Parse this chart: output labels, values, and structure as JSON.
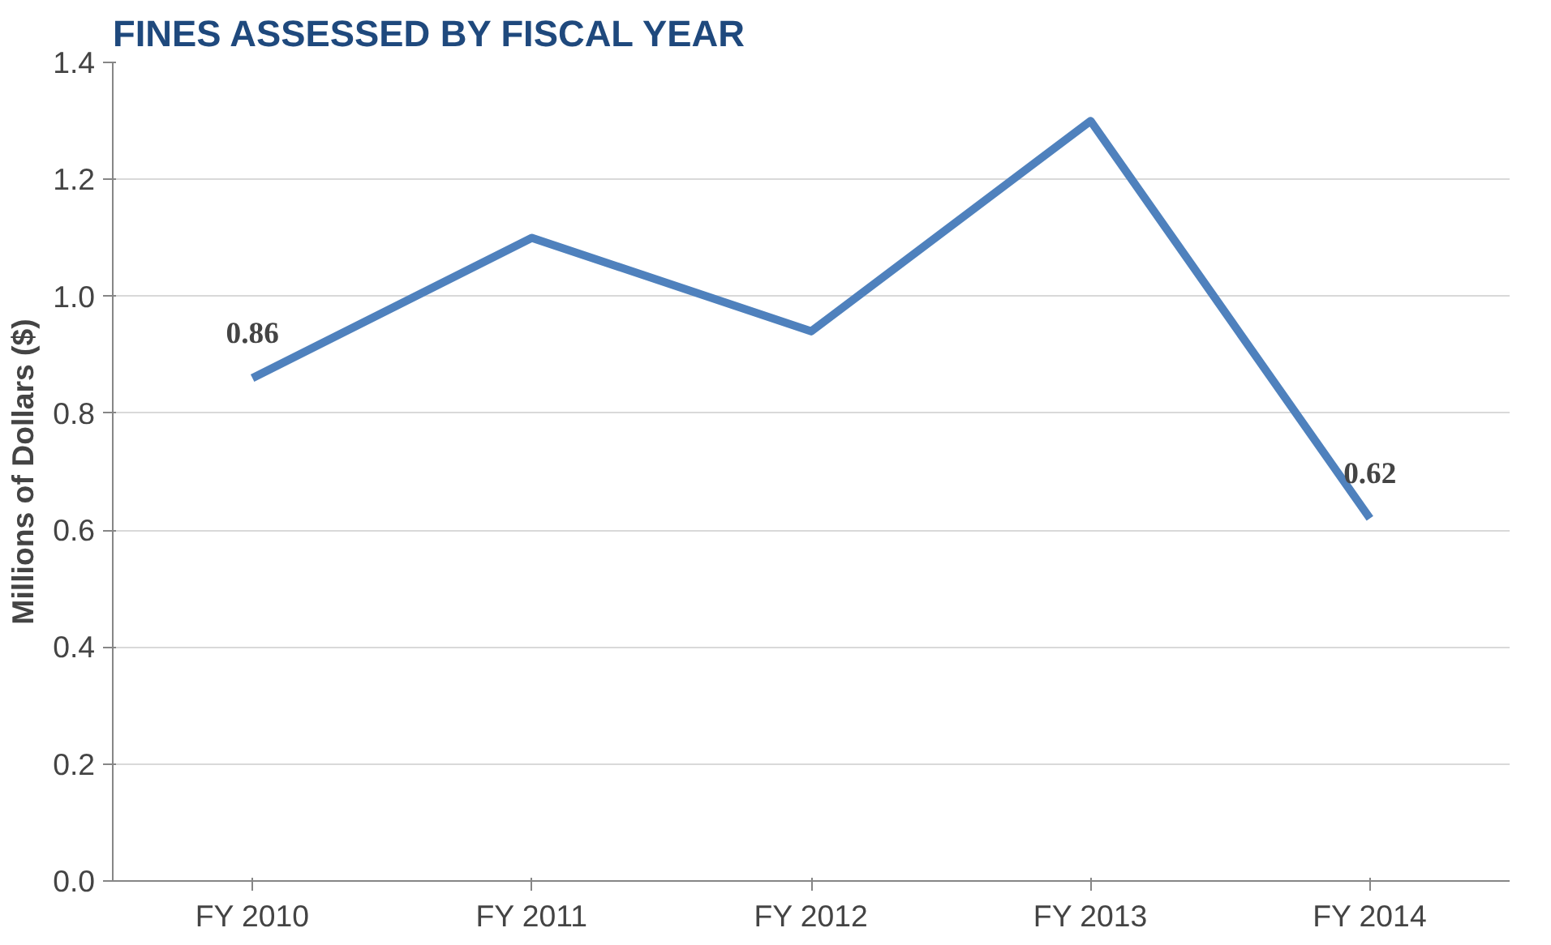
{
  "chart_data": {
    "type": "line",
    "title": "FINES ASSESSED BY FISCAL YEAR",
    "ylabel": "Millions of Dollars ($)",
    "categories": [
      "FY 2010",
      "FY 2011",
      "FY 2012",
      "FY 2013",
      "FY 2014"
    ],
    "series": [
      {
        "color": "#4f81bd",
        "values": [
          0.86,
          1.1,
          0.94,
          1.3,
          0.62
        ],
        "value_labels": [
          "0.86",
          null,
          null,
          null,
          "0.62"
        ]
      }
    ],
    "ylim": [
      0,
      1.4
    ],
    "yticks": [
      {
        "value": 0,
        "label": "0.0"
      },
      0.2,
      0.4,
      0.6,
      0.8,
      {
        "value": 1.0,
        "label": "1.0"
      },
      1.2,
      1.4
    ],
    "grid": "y",
    "marker": "none",
    "line_style": "solid"
  }
}
